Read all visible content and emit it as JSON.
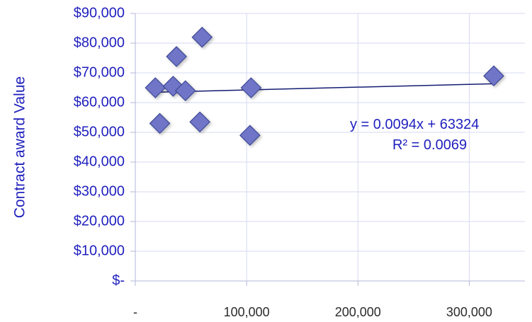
{
  "chart_data": {
    "type": "scatter",
    "title": "",
    "xlabel": "",
    "ylabel": "Contract award Value",
    "xlim": [
      0,
      350000
    ],
    "ylim": [
      0,
      90000
    ],
    "x_ticks": [
      0,
      100000,
      200000,
      300000
    ],
    "x_tick_labels": [
      "-",
      "100,000",
      "200,000",
      "300,000"
    ],
    "y_ticks": [
      0,
      10000,
      20000,
      30000,
      40000,
      50000,
      60000,
      70000,
      80000,
      90000
    ],
    "y_tick_labels": [
      "$-",
      "$10,000",
      "$20,000",
      "$30,000",
      "$40,000",
      "$50,000",
      "$60,000",
      "$70,000",
      "$80,000",
      "$90,000"
    ],
    "grid": {
      "horizontal": true,
      "vertical": true
    },
    "series": [
      {
        "points": [
          {
            "x": 18000,
            "y": 65000
          },
          {
            "x": 22000,
            "y": 53000
          },
          {
            "x": 34000,
            "y": 65500
          },
          {
            "x": 37000,
            "y": 75500
          },
          {
            "x": 45000,
            "y": 64000
          },
          {
            "x": 58000,
            "y": 53500
          },
          {
            "x": 60000,
            "y": 82000
          },
          {
            "x": 104000,
            "y": 65000
          },
          {
            "x": 103000,
            "y": 49000
          },
          {
            "x": 322000,
            "y": 69000
          }
        ]
      }
    ],
    "trendline": {
      "slope": 0.0094,
      "intercept": 63324,
      "x_start": 18000,
      "x_end": 322000,
      "equation_label": "y = 0.0094x + 63324",
      "r2_label": "R² = 0.0069"
    },
    "colors": {
      "marker_fill": "#6f75c8",
      "marker_stroke": "#3f4a95",
      "marker_shadow": "#c7cae3",
      "trendline": "#141c73",
      "text": "#1f1fbe",
      "grid": "#d6d9f0",
      "axis": "#b4b7d8"
    }
  }
}
